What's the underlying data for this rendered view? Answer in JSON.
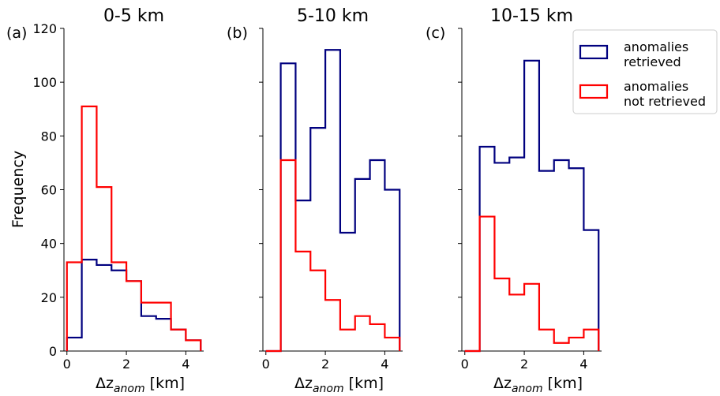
{
  "chart_data": [
    {
      "type": "histogram",
      "panel_label": "(a)",
      "title": "0-5 km",
      "xlabel": "Δz",
      "xlabel_sub": "anom",
      "xlabel_unit": " [km]",
      "ylabel": "Frequency",
      "xlim": [
        -0.1,
        4.6
      ],
      "ylim": [
        0,
        120
      ],
      "xticks": [
        0,
        2,
        4
      ],
      "yticks": [
        0,
        20,
        40,
        60,
        80,
        100,
        120
      ],
      "bin_edges": [
        0,
        0.5,
        1.0,
        1.5,
        2.0,
        2.5,
        3.0,
        3.5,
        4.0,
        4.5
      ],
      "series": [
        {
          "name": "anomalies retrieved",
          "color": "#00007f",
          "values": [
            5,
            34,
            32,
            30,
            26,
            13,
            12,
            8,
            4
          ]
        },
        {
          "name": "anomalies not retrieved",
          "color": "#ff0000",
          "values": [
            33,
            91,
            61,
            33,
            26,
            18,
            18,
            8,
            4
          ]
        }
      ]
    },
    {
      "type": "histogram",
      "panel_label": "(b)",
      "title": "5-10 km",
      "xlabel": "Δz",
      "xlabel_sub": "anom",
      "xlabel_unit": " [km]",
      "xlim": [
        -0.1,
        4.6
      ],
      "ylim": [
        0,
        120
      ],
      "xticks": [
        0,
        2,
        4
      ],
      "bin_edges": [
        0,
        0.5,
        1.0,
        1.5,
        2.0,
        2.5,
        3.0,
        3.5,
        4.0,
        4.5
      ],
      "series": [
        {
          "name": "anomalies retrieved",
          "color": "#00007f",
          "values": [
            0,
            107,
            56,
            83,
            112,
            44,
            64,
            71,
            60
          ]
        },
        {
          "name": "anomalies not retrieved",
          "color": "#ff0000",
          "values": [
            0,
            71,
            37,
            30,
            19,
            8,
            13,
            10,
            5
          ]
        }
      ]
    },
    {
      "type": "histogram",
      "panel_label": "(c)",
      "title": "10-15 km",
      "xlabel": "Δz",
      "xlabel_sub": "anom",
      "xlabel_unit": " [km]",
      "xlim": [
        -0.1,
        4.6
      ],
      "ylim": [
        0,
        120
      ],
      "xticks": [
        0,
        2,
        4
      ],
      "bin_edges": [
        0,
        0.5,
        1.0,
        1.5,
        2.0,
        2.5,
        3.0,
        3.5,
        4.0,
        4.5
      ],
      "series": [
        {
          "name": "anomalies retrieved",
          "color": "#00007f",
          "values": [
            0,
            76,
            70,
            72,
            108,
            67,
            71,
            68,
            45
          ]
        },
        {
          "name": "anomalies not retrieved",
          "color": "#ff0000",
          "values": [
            0,
            50,
            27,
            21,
            25,
            8,
            3,
            5,
            8
          ]
        }
      ]
    }
  ],
  "legend": {
    "placement": "top-right",
    "entries": [
      {
        "label_line1": "anomalies",
        "label_line2": "retrieved",
        "color": "#00007f"
      },
      {
        "label_line1": "anomalies",
        "label_line2": "not retrieved",
        "color": "#ff0000"
      }
    ]
  }
}
